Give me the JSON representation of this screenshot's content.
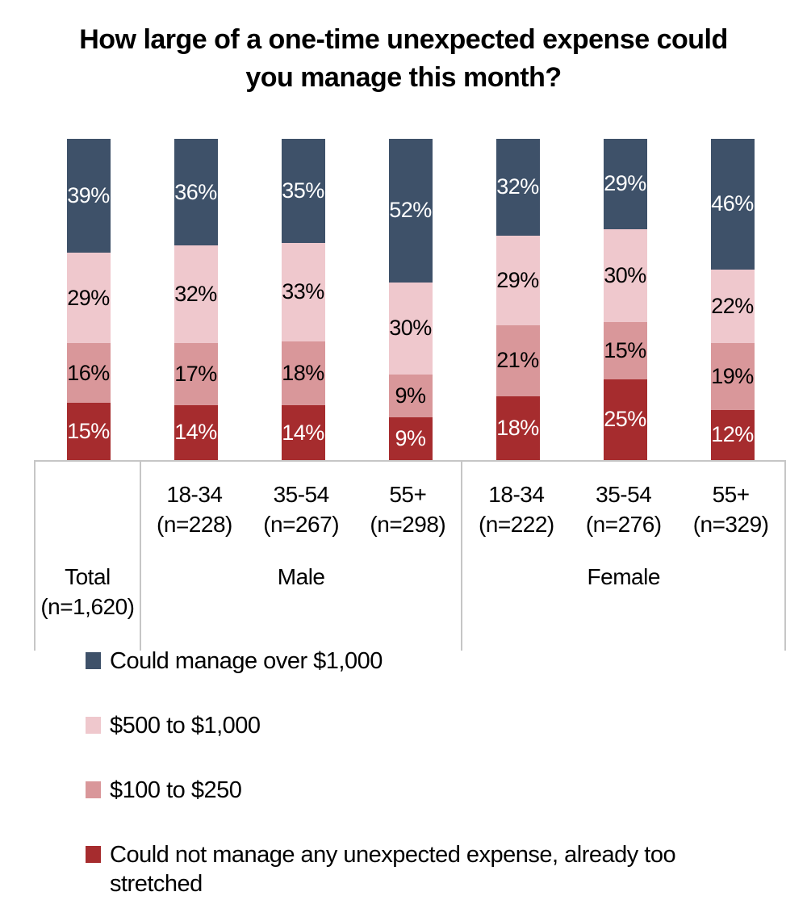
{
  "title": "How large of a one-time unexpected expense could you manage this month?",
  "colors": {
    "series_blue": "#3e5169",
    "series_light_pink": "#efc8cd",
    "series_salmon": "#d9979a",
    "series_dark_red": "#a62c2e",
    "grid_line": "#c6c6c6",
    "label_on_dark": "#ffffff",
    "label_on_light": "#000000"
  },
  "chart_data": {
    "type": "bar",
    "subtype": "stacked-100-percent-column",
    "title": "How large of a one-time unexpected expense could you manage this month?",
    "categories": [
      "Total (n=1,620)",
      "Male 18-34 (n=228)",
      "Male 35-54 (n=267)",
      "Male 55+ (n=298)",
      "Female 18-34 (n=222)",
      "Female 35-54 (n=276)",
      "Female 55+ (n=329)"
    ],
    "series": [
      {
        "name": "Could manage over $1,000",
        "color": "#3e5169",
        "label_color": "#ffffff",
        "values": [
          39,
          36,
          35,
          52,
          32,
          29,
          46
        ]
      },
      {
        "name": "$500 to $1,000",
        "color": "#efc8cd",
        "label_color": "#000000",
        "values": [
          29,
          32,
          33,
          30,
          29,
          30,
          22
        ]
      },
      {
        "name": "$100 to $250",
        "color": "#d9979a",
        "label_color": "#000000",
        "values": [
          16,
          17,
          18,
          9,
          21,
          15,
          19
        ]
      },
      {
        "name": "Could not manage any unexpected expense, already too stretched",
        "color": "#a62c2e",
        "label_color": "#ffffff",
        "values": [
          15,
          14,
          14,
          9,
          18,
          25,
          12
        ]
      }
    ],
    "value_suffix": "%",
    "data_labels": "inside-center",
    "legend_position": "bottom-left",
    "gridlines": false,
    "y_axis": "hidden"
  },
  "axis": {
    "total": {
      "label": "Total",
      "n": "(n=1,620)"
    },
    "male": {
      "label": "Male",
      "ages": [
        {
          "label": "18-34",
          "n": "(n=228)"
        },
        {
          "label": "35-54",
          "n": "(n=267)"
        },
        {
          "label": "55+",
          "n": "(n=298)"
        }
      ]
    },
    "female": {
      "label": "Female",
      "ages": [
        {
          "label": "18-34",
          "n": "(n=222)"
        },
        {
          "label": "35-54",
          "n": "(n=276)"
        },
        {
          "label": "55+",
          "n": "(n=329)"
        }
      ]
    }
  },
  "legend": [
    {
      "label": "Could manage over $1,000",
      "color": "#3e5169"
    },
    {
      "label": "$500 to $1,000",
      "color": "#efc8cd"
    },
    {
      "label": "$100 to $250",
      "color": "#d9979a"
    },
    {
      "label": "Could not manage any unexpected expense, already too stretched",
      "color": "#a62c2e"
    }
  ]
}
